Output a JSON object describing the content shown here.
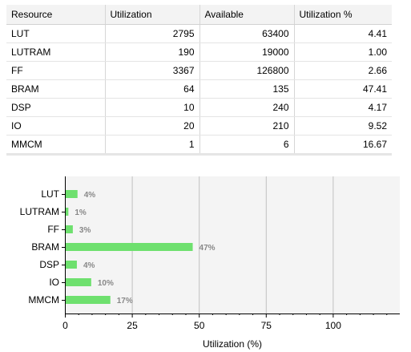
{
  "table": {
    "headers": [
      "Resource",
      "Utilization",
      "Available",
      "Utilization %"
    ],
    "rows": [
      [
        "LUT",
        "2795",
        "63400",
        "4.41"
      ],
      [
        "LUTRAM",
        "190",
        "19000",
        "1.00"
      ],
      [
        "FF",
        "3367",
        "126800",
        "2.66"
      ],
      [
        "BRAM",
        "64",
        "135",
        "47.41"
      ],
      [
        "DSP",
        "10",
        "240",
        "4.17"
      ],
      [
        "IO",
        "20",
        "210",
        "9.52"
      ],
      [
        "MMCM",
        "1",
        "6",
        "16.67"
      ]
    ]
  },
  "chart_data": {
    "type": "bar",
    "orientation": "horizontal",
    "categories": [
      "LUT",
      "LUTRAM",
      "FF",
      "BRAM",
      "DSP",
      "IO",
      "MMCM"
    ],
    "values": [
      4.41,
      1.0,
      2.66,
      47.41,
      4.17,
      9.52,
      16.67
    ],
    "data_labels": [
      "4%",
      "1%",
      "3%",
      "47%",
      "4%",
      "10%",
      "17%"
    ],
    "xlabel": "Utilization (%)",
    "ylabel": "",
    "xlim": [
      0,
      125
    ],
    "xticks": [
      0,
      25,
      50,
      75,
      100
    ],
    "grid": true,
    "legend": "none",
    "colors": {
      "bar": "#6ee06e",
      "plot_bg": "#f4f4f4",
      "grid": "#c0c0c0",
      "data_label": "#888888"
    }
  }
}
